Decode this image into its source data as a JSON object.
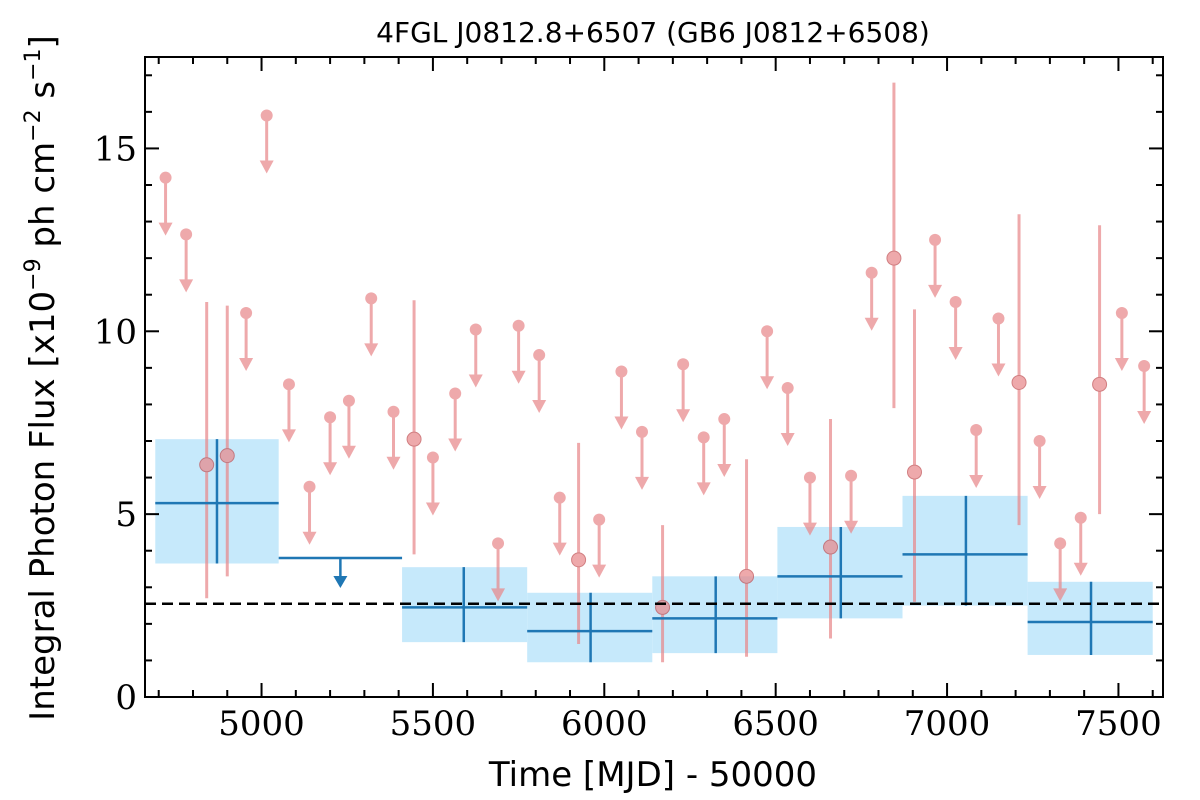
{
  "chart_data": {
    "type": "scatter",
    "title": "4FGL J0812.8+6507 (GB6 J0812+6508)",
    "xlabel": "Time [MJD] - 50000",
    "ylabel": "Integral Photon Flux [x10",
    "ylabel_exp1": "−9",
    "ylabel_mid": " ph cm",
    "ylabel_exp2": "−2",
    "ylabel_s": " s",
    "ylabel_exp3": "−1",
    "ylabel_end": "]",
    "xlim": [
      4660,
      7630
    ],
    "ylim": [
      0,
      17.5
    ],
    "xticks": [
      5000,
      5500,
      6000,
      6500,
      7000,
      7500
    ],
    "yticks": [
      0,
      5,
      10,
      15
    ],
    "colors": {
      "fine": "#e8898c",
      "coarse": "#1f77b4",
      "band": "#c6e9fb",
      "baseline": "#000000"
    },
    "baseline_flux": 2.55,
    "fine_detections": [
      {
        "x": 4840,
        "y": 6.35,
        "lo": 2.7,
        "hi": 10.8
      },
      {
        "x": 4900,
        "y": 6.6,
        "lo": 3.3,
        "hi": 10.7
      },
      {
        "x": 5445,
        "y": 7.05,
        "lo": 3.9,
        "hi": 10.85
      },
      {
        "x": 5925,
        "y": 3.75,
        "lo": 1.45,
        "hi": 6.95
      },
      {
        "x": 6170,
        "y": 2.45,
        "lo": 0.95,
        "hi": 4.7
      },
      {
        "x": 6415,
        "y": 3.3,
        "lo": 1.1,
        "hi": 6.5
      },
      {
        "x": 6660,
        "y": 4.1,
        "lo": 1.6,
        "hi": 7.6
      },
      {
        "x": 6845,
        "y": 12.0,
        "lo": 7.9,
        "hi": 16.8
      },
      {
        "x": 6905,
        "y": 6.15,
        "lo": 2.6,
        "hi": 10.6
      },
      {
        "x": 7210,
        "y": 8.6,
        "lo": 4.7,
        "hi": 13.2
      },
      {
        "x": 7445,
        "y": 8.55,
        "lo": 5.0,
        "hi": 12.9
      }
    ],
    "fine_upper_limits": [
      {
        "x": 4720,
        "y": 14.2
      },
      {
        "x": 4780,
        "y": 12.65
      },
      {
        "x": 4955,
        "y": 10.5
      },
      {
        "x": 5015,
        "y": 15.9
      },
      {
        "x": 5080,
        "y": 8.55
      },
      {
        "x": 5140,
        "y": 5.75
      },
      {
        "x": 5200,
        "y": 7.65
      },
      {
        "x": 5255,
        "y": 8.1
      },
      {
        "x": 5320,
        "y": 10.9
      },
      {
        "x": 5385,
        "y": 7.8
      },
      {
        "x": 5500,
        "y": 6.55
      },
      {
        "x": 5565,
        "y": 8.3
      },
      {
        "x": 5625,
        "y": 10.05
      },
      {
        "x": 5690,
        "y": 4.2
      },
      {
        "x": 5750,
        "y": 10.15
      },
      {
        "x": 5810,
        "y": 9.35
      },
      {
        "x": 5870,
        "y": 5.45
      },
      {
        "x": 5985,
        "y": 4.85
      },
      {
        "x": 6050,
        "y": 8.9
      },
      {
        "x": 6110,
        "y": 7.25
      },
      {
        "x": 6230,
        "y": 9.1
      },
      {
        "x": 6290,
        "y": 7.1
      },
      {
        "x": 6350,
        "y": 7.6
      },
      {
        "x": 6475,
        "y": 10.0
      },
      {
        "x": 6535,
        "y": 8.45
      },
      {
        "x": 6600,
        "y": 6.0
      },
      {
        "x": 6720,
        "y": 6.05
      },
      {
        "x": 6780,
        "y": 11.6
      },
      {
        "x": 6965,
        "y": 12.5
      },
      {
        "x": 7025,
        "y": 10.8
      },
      {
        "x": 7085,
        "y": 7.3
      },
      {
        "x": 7150,
        "y": 10.35
      },
      {
        "x": 7270,
        "y": 7.0
      },
      {
        "x": 7330,
        "y": 4.2
      },
      {
        "x": 7390,
        "y": 4.9
      },
      {
        "x": 7510,
        "y": 10.5
      },
      {
        "x": 7575,
        "y": 9.05
      }
    ],
    "coarse_detections": [
      {
        "x0": 4690,
        "x1": 5050,
        "x": 4870,
        "y": 5.3,
        "lo": 3.65,
        "hi": 7.05
      },
      {
        "x0": 5410,
        "x1": 5775,
        "x": 5590,
        "y": 2.45,
        "lo": 1.5,
        "hi": 3.55
      },
      {
        "x0": 5775,
        "x1": 6140,
        "x": 5960,
        "y": 1.8,
        "lo": 0.95,
        "hi": 2.85
      },
      {
        "x0": 6140,
        "x1": 6505,
        "x": 6325,
        "y": 2.15,
        "lo": 1.2,
        "hi": 3.3
      },
      {
        "x0": 6505,
        "x1": 6870,
        "x": 6690,
        "y": 3.3,
        "lo": 2.15,
        "hi": 4.65
      },
      {
        "x0": 6870,
        "x1": 7235,
        "x": 7055,
        "y": 3.9,
        "lo": 2.5,
        "hi": 5.5
      },
      {
        "x0": 7235,
        "x1": 7600,
        "x": 7420,
        "y": 2.05,
        "lo": 1.15,
        "hi": 3.15
      }
    ],
    "coarse_upper_limits": [
      {
        "x0": 5050,
        "x1": 5410,
        "x": 5230,
        "y": 3.8
      }
    ]
  }
}
